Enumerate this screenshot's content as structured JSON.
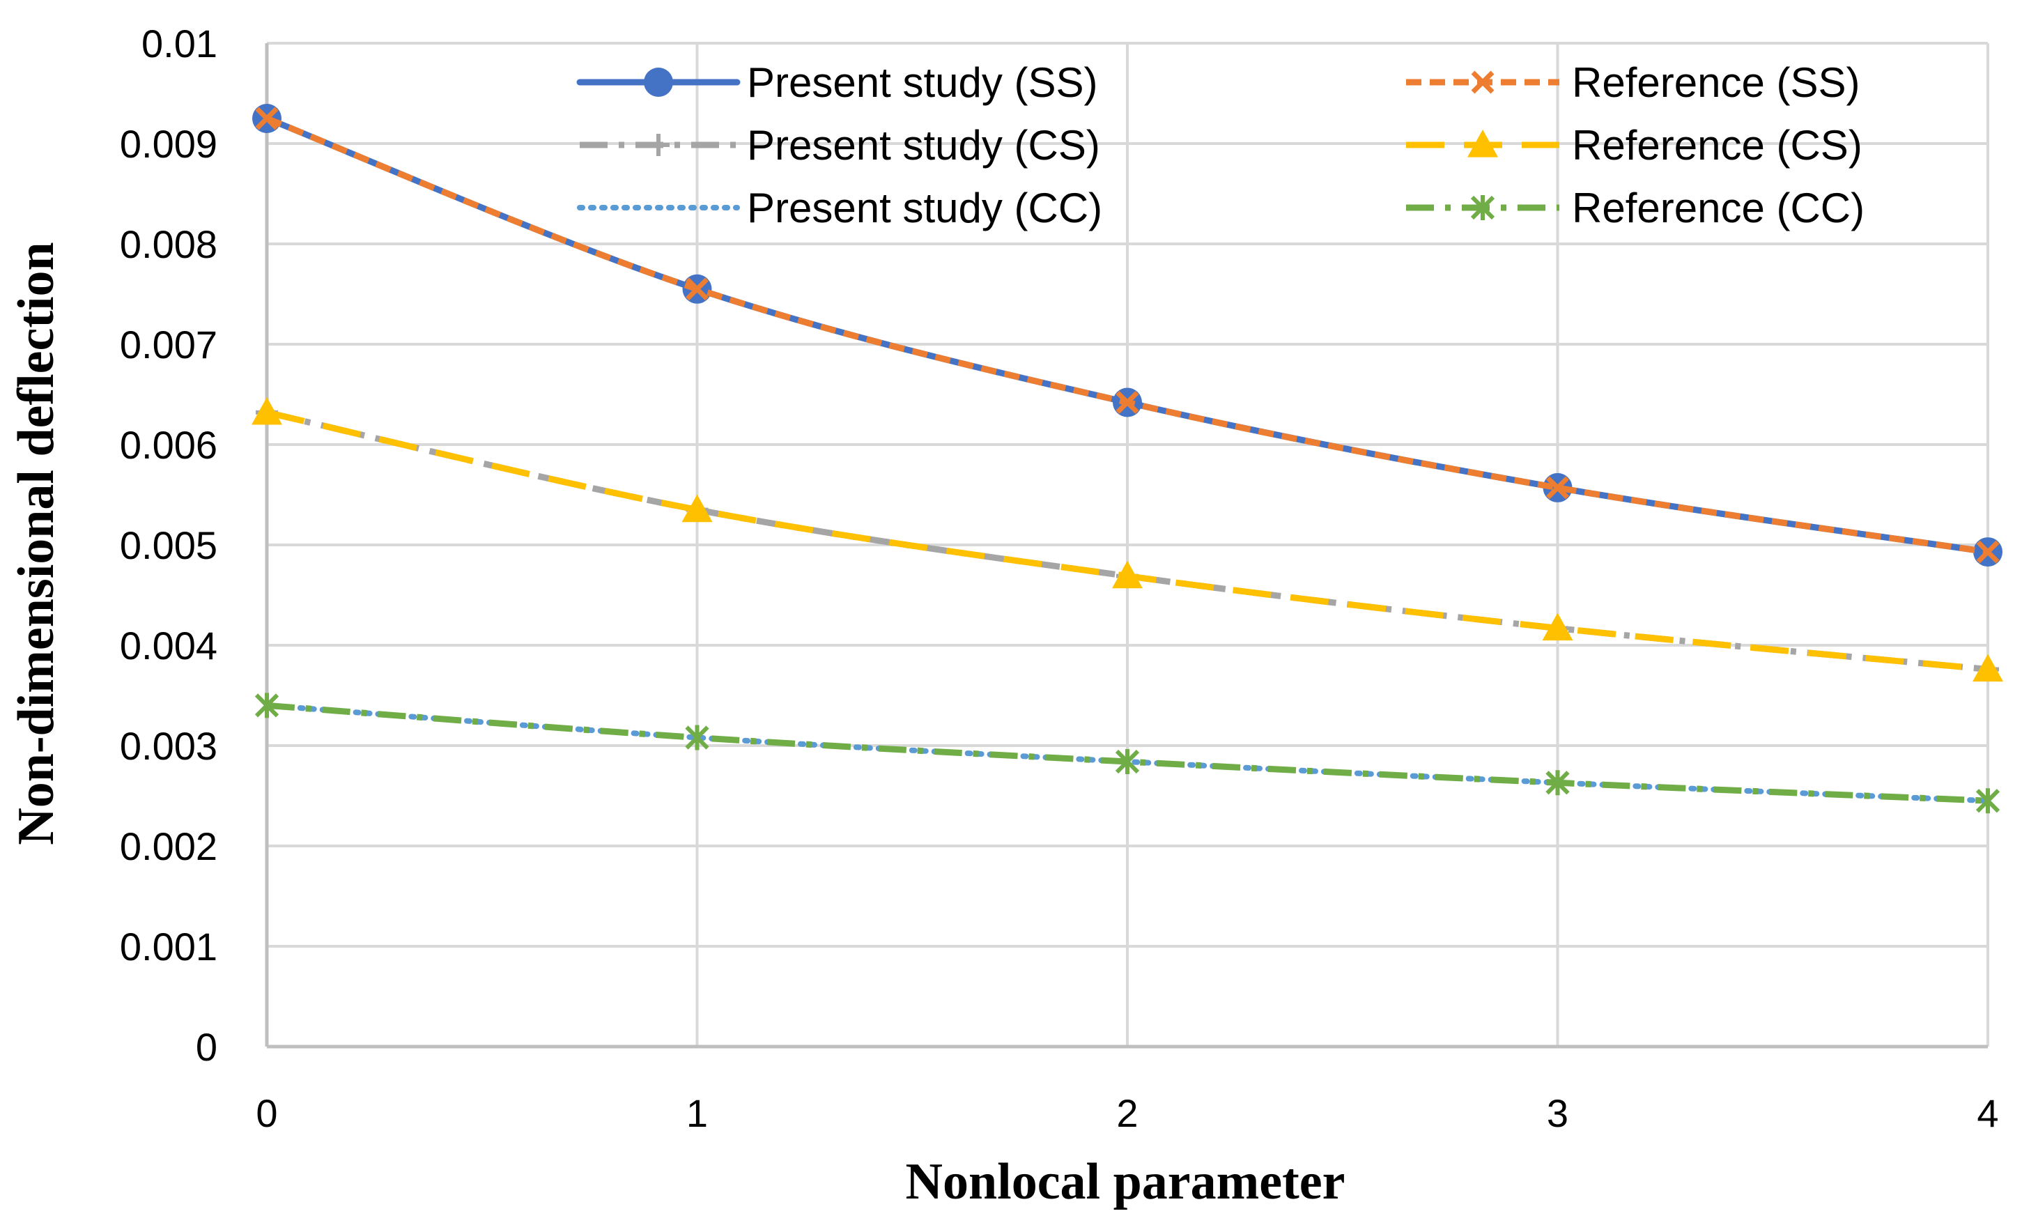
{
  "chart_data": {
    "type": "line",
    "title": "",
    "xlabel": "Nonlocal parameter",
    "ylabel": "Non-dimensional deflection",
    "x": [
      0,
      1,
      2,
      3,
      4
    ],
    "xlim": [
      0,
      4
    ],
    "ylim": [
      0,
      0.01
    ],
    "xticks": [
      "0",
      "1",
      "2",
      "3",
      "4"
    ],
    "yticks": [
      "0",
      "0.001",
      "0.002",
      "0.003",
      "0.004",
      "0.005",
      "0.006",
      "0.007",
      "0.008",
      "0.009",
      "0.01"
    ],
    "grid": true,
    "legend_position": "top",
    "series": [
      {
        "name": "Present study (SS)",
        "values": [
          0.00925,
          0.00755,
          0.00642,
          0.00557,
          0.00493
        ],
        "color": "#4472C4",
        "dash": "solid",
        "marker": "circle"
      },
      {
        "name": "Reference (SS)",
        "values": [
          0.00925,
          0.00755,
          0.00642,
          0.00557,
          0.00493
        ],
        "color": "#ED7D31",
        "dash": "dash",
        "marker": "x"
      },
      {
        "name": "Present study (CS)",
        "values": [
          0.00632,
          0.00535,
          0.00469,
          0.00417,
          0.00376
        ],
        "color": "#A5A5A5",
        "dash": "dashdot",
        "marker": "plus"
      },
      {
        "name": "Reference (CS)",
        "values": [
          0.00632,
          0.00535,
          0.00469,
          0.00417,
          0.00376
        ],
        "color": "#FFC000",
        "dash": "longdash",
        "marker": "triangle"
      },
      {
        "name": "Present study (CC)",
        "values": [
          0.0034,
          0.00308,
          0.00284,
          0.00263,
          0.00245
        ],
        "color": "#5B9BD5",
        "dash": "dot",
        "marker": "none"
      },
      {
        "name": "Reference (CC)",
        "values": [
          0.0034,
          0.00308,
          0.00284,
          0.00263,
          0.00245
        ],
        "color": "#70AD47",
        "dash": "dashdot",
        "marker": "star"
      }
    ]
  }
}
